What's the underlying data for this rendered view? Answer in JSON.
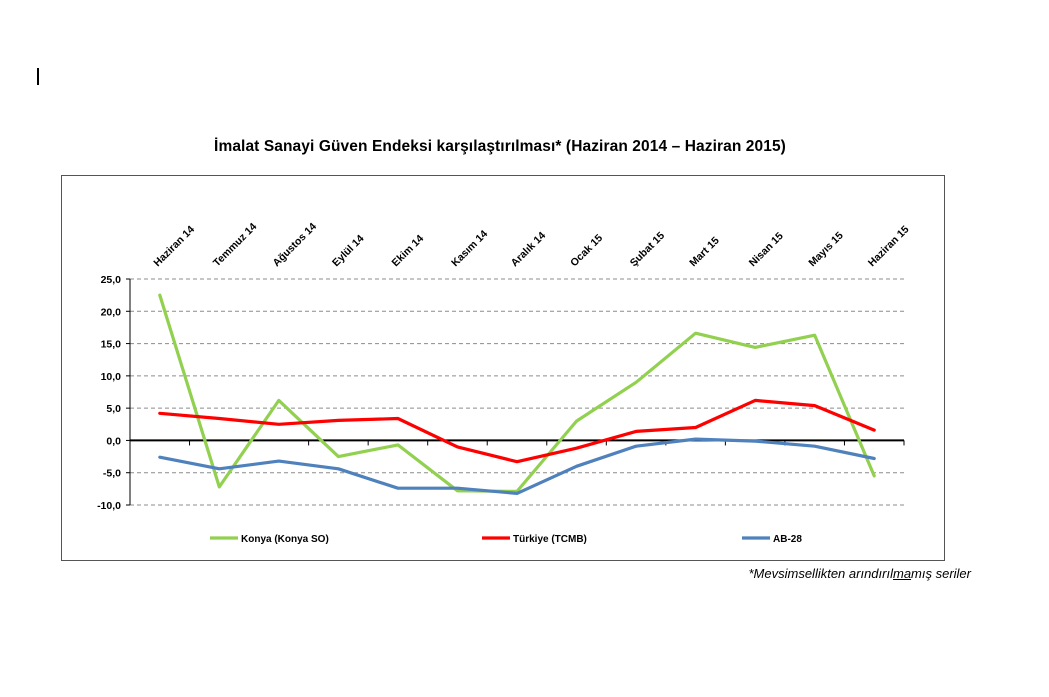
{
  "chart_data": {
    "type": "line",
    "title": "İmalat Sanayi Güven Endeksi karşılaştırılması* (Haziran 2014 – Haziran 2015)",
    "categories": [
      "Haziran 14",
      "Temmuz 14",
      "Ağustos 14",
      "Eylül 14",
      "Ekim 14",
      "Kasım 14",
      "Aralık 14",
      "Ocak 15",
      "Şubat 15",
      "Mart 15",
      "Nisan 15",
      "Mayıs 15",
      "Haziran 15"
    ],
    "ylim": [
      -10,
      25
    ],
    "yticks": [
      "25,0",
      "20,0",
      "15,0",
      "10,0",
      "5,0",
      "0,0",
      "-5,0",
      "-10,0"
    ],
    "ytick_values": [
      25,
      20,
      15,
      10,
      5,
      0,
      -5,
      -10
    ],
    "grid": true,
    "legend_position": "bottom",
    "series": [
      {
        "name": "Konya (Konya SO)",
        "color": "#92D050",
        "values": [
          22.5,
          -7.2,
          6.2,
          -2.5,
          -0.7,
          -7.8,
          -7.9,
          3.0,
          9.0,
          16.6,
          14.4,
          16.3,
          -5.5
        ]
      },
      {
        "name": "Türkiye (TCMB)",
        "color": "#FF0000",
        "values": [
          4.2,
          3.4,
          2.5,
          3.1,
          3.4,
          -1.0,
          -3.3,
          -1.2,
          1.4,
          2.0,
          6.2,
          5.4,
          1.6
        ]
      },
      {
        "name": "AB-28",
        "color": "#4F81BD",
        "values": [
          -2.6,
          -4.4,
          -3.2,
          -4.4,
          -7.4,
          -7.4,
          -8.2,
          -4.0,
          -0.9,
          0.2,
          -0.1,
          -0.9,
          -2.8
        ]
      }
    ]
  },
  "footnote": {
    "prefix": "*Mevsimsellikten arındırıl",
    "underlined": "ma",
    "suffix": "mış seriler"
  }
}
